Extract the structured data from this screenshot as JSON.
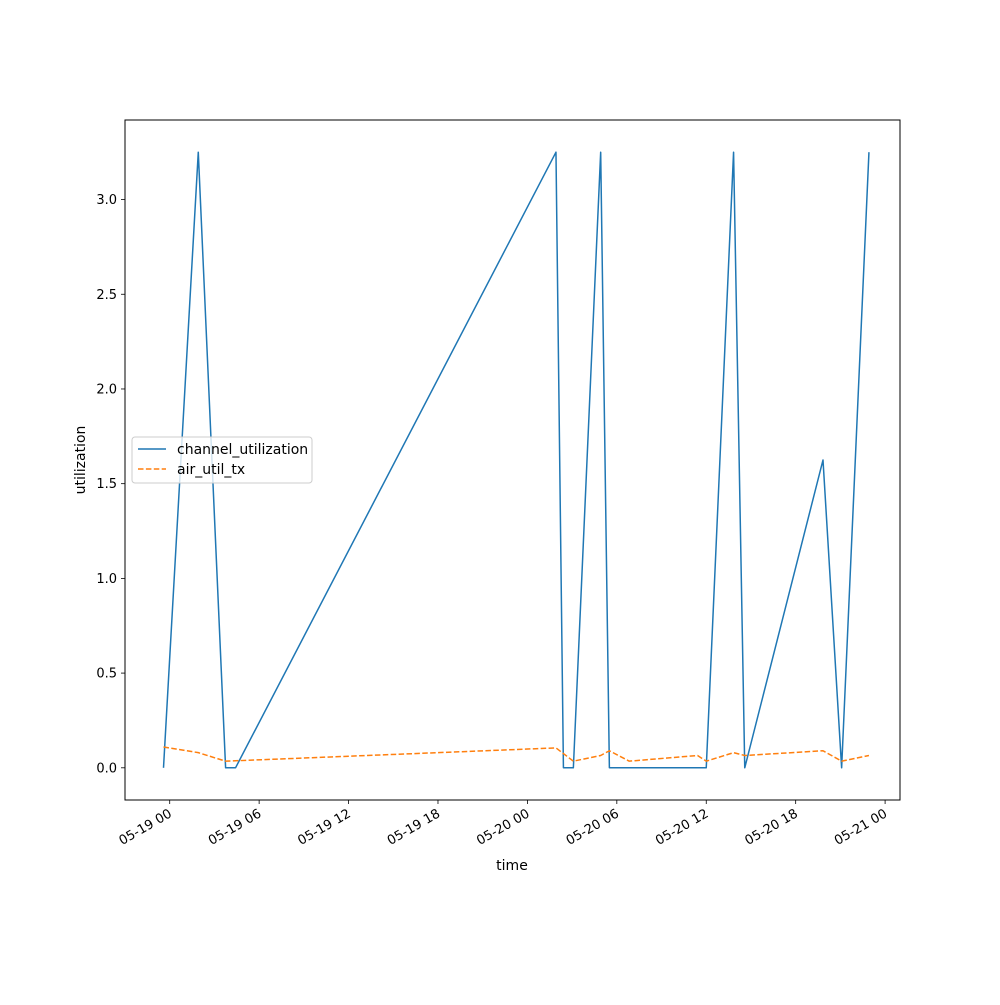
{
  "chart_data": {
    "type": "line",
    "title": "",
    "xlabel": "time",
    "ylabel": "utilization",
    "x_axis_type": "datetime",
    "xlim": [
      "2024-05-18 21:00",
      "2024-05-21 01:00"
    ],
    "ylim": [
      -0.17,
      3.42
    ],
    "x_ticks": [
      {
        "x": "2024-05-19 00:00",
        "label": "05-19 00"
      },
      {
        "x": "2024-05-19 06:00",
        "label": "05-19 06"
      },
      {
        "x": "2024-05-19 12:00",
        "label": "05-19 12"
      },
      {
        "x": "2024-05-19 18:00",
        "label": "05-19 18"
      },
      {
        "x": "2024-05-20 00:00",
        "label": "05-20 00"
      },
      {
        "x": "2024-05-20 06:00",
        "label": "05-20 06"
      },
      {
        "x": "2024-05-20 12:00",
        "label": "05-20 12"
      },
      {
        "x": "2024-05-20 18:00",
        "label": "05-20 18"
      },
      {
        "x": "2024-05-21 00:00",
        "label": "05-21 00"
      }
    ],
    "y_ticks": [
      {
        "y": 0.0,
        "label": "0.0"
      },
      {
        "y": 0.5,
        "label": "0.5"
      },
      {
        "y": 1.0,
        "label": "1.0"
      },
      {
        "y": 1.5,
        "label": "1.5"
      },
      {
        "y": 2.0,
        "label": "2.0"
      },
      {
        "y": 2.5,
        "label": "2.5"
      },
      {
        "y": 3.0,
        "label": "3.0"
      }
    ],
    "grid": false,
    "legend_position": "center-left",
    "series": [
      {
        "name": "channel_utilization",
        "color": "#1f77b4",
        "style": "solid",
        "points": [
          {
            "x": "2024-05-18 23:35",
            "y": 0.0
          },
          {
            "x": "2024-05-19 01:55",
            "y": 3.25
          },
          {
            "x": "2024-05-19 03:45",
            "y": 0.0
          },
          {
            "x": "2024-05-19 04:25",
            "y": 0.0
          },
          {
            "x": "2024-05-20 01:55",
            "y": 3.25
          },
          {
            "x": "2024-05-20 02:25",
            "y": 0.0
          },
          {
            "x": "2024-05-20 03:05",
            "y": 0.0
          },
          {
            "x": "2024-05-20 04:55",
            "y": 3.25
          },
          {
            "x": "2024-05-20 05:30",
            "y": 0.0
          },
          {
            "x": "2024-05-20 12:00",
            "y": 0.0
          },
          {
            "x": "2024-05-20 13:50",
            "y": 3.25
          },
          {
            "x": "2024-05-20 14:35",
            "y": 0.0
          },
          {
            "x": "2024-05-20 19:50",
            "y": 1.625
          },
          {
            "x": "2024-05-20 21:05",
            "y": 0.0
          },
          {
            "x": "2024-05-20 22:55",
            "y": 3.25
          }
        ]
      },
      {
        "name": "air_util_tx",
        "color": "#ff7f0e",
        "style": "dashed",
        "points": [
          {
            "x": "2024-05-18 23:35",
            "y": 0.11
          },
          {
            "x": "2024-05-19 01:55",
            "y": 0.08
          },
          {
            "x": "2024-05-19 03:45",
            "y": 0.035
          },
          {
            "x": "2024-05-20 01:55",
            "y": 0.105
          },
          {
            "x": "2024-05-20 03:05",
            "y": 0.035
          },
          {
            "x": "2024-05-20 04:55",
            "y": 0.065
          },
          {
            "x": "2024-05-20 05:30",
            "y": 0.09
          },
          {
            "x": "2024-05-20 06:50",
            "y": 0.035
          },
          {
            "x": "2024-05-20 11:25",
            "y": 0.065
          },
          {
            "x": "2024-05-20 12:00",
            "y": 0.035
          },
          {
            "x": "2024-05-20 13:50",
            "y": 0.08
          },
          {
            "x": "2024-05-20 14:35",
            "y": 0.065
          },
          {
            "x": "2024-05-20 19:50",
            "y": 0.09
          },
          {
            "x": "2024-05-20 21:05",
            "y": 0.035
          },
          {
            "x": "2024-05-20 22:55",
            "y": 0.065
          }
        ]
      }
    ]
  }
}
